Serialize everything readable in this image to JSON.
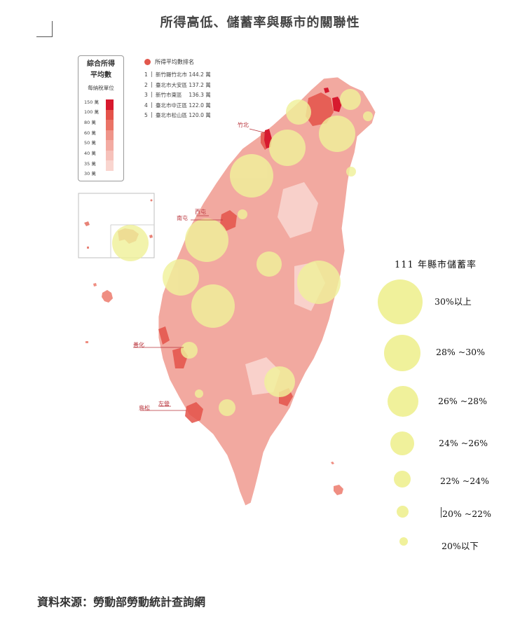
{
  "title": "所得高低、儲蓄率與縣市的關聯性",
  "source": "資料來源：勞動部勞動統計查詢網",
  "income_legend": {
    "title_line1": "綜合所得",
    "title_line2": "平均數",
    "unit": "每納稅單位",
    "steps": [
      {
        "label": "150 萬",
        "color": "#d7192e"
      },
      {
        "label": "100 萬",
        "color": "#e4534a"
      },
      {
        "label": "80 萬",
        "color": "#ea7366"
      },
      {
        "label": "60 萬",
        "color": "#ef9489"
      },
      {
        "label": "50 萬",
        "color": "#f3aba2"
      },
      {
        "label": "40 萬",
        "color": "#f6c1ba"
      },
      {
        "label": "35 萬",
        "color": "#f9d5cf"
      },
      {
        "label": "30 萬",
        "color": "#fbe7e3"
      }
    ]
  },
  "rank": {
    "header": "所得平均數排名",
    "items": [
      {
        "num": "1",
        "text": "新竹縣竹北市 144.2 萬"
      },
      {
        "num": "2",
        "text": "臺北市大安區 137.2 萬"
      },
      {
        "num": "3",
        "text": "新竹市東區　 136.3 萬"
      },
      {
        "num": "4",
        "text": "臺北市中正區 122.0 萬"
      },
      {
        "num": "5",
        "text": "臺北市松山區 120.0 萬"
      }
    ]
  },
  "place_labels": {
    "zhubei": "竹北",
    "xitun": "西屯",
    "nantun": "南屯",
    "shanhua": "善化",
    "zuoying": "左營",
    "niaosong": "鳥松"
  },
  "savings_legend": {
    "title": "111 年縣市儲蓄率",
    "color": "#f0f19b",
    "items": [
      {
        "label": "30%以上"
      },
      {
        "label": "28% ~30%"
      },
      {
        "label": "26% ~28%"
      },
      {
        "label": "24% ~26%"
      },
      {
        "label": "22% ~24%"
      },
      {
        "label": "20% ~22%"
      },
      {
        "label": "20%以下"
      }
    ]
  },
  "colors": {
    "island_base": "#f2a9a0",
    "highlight_red": "#d7192e",
    "savings_bubble": "#f0f19b",
    "label_red": "#b8323a"
  }
}
